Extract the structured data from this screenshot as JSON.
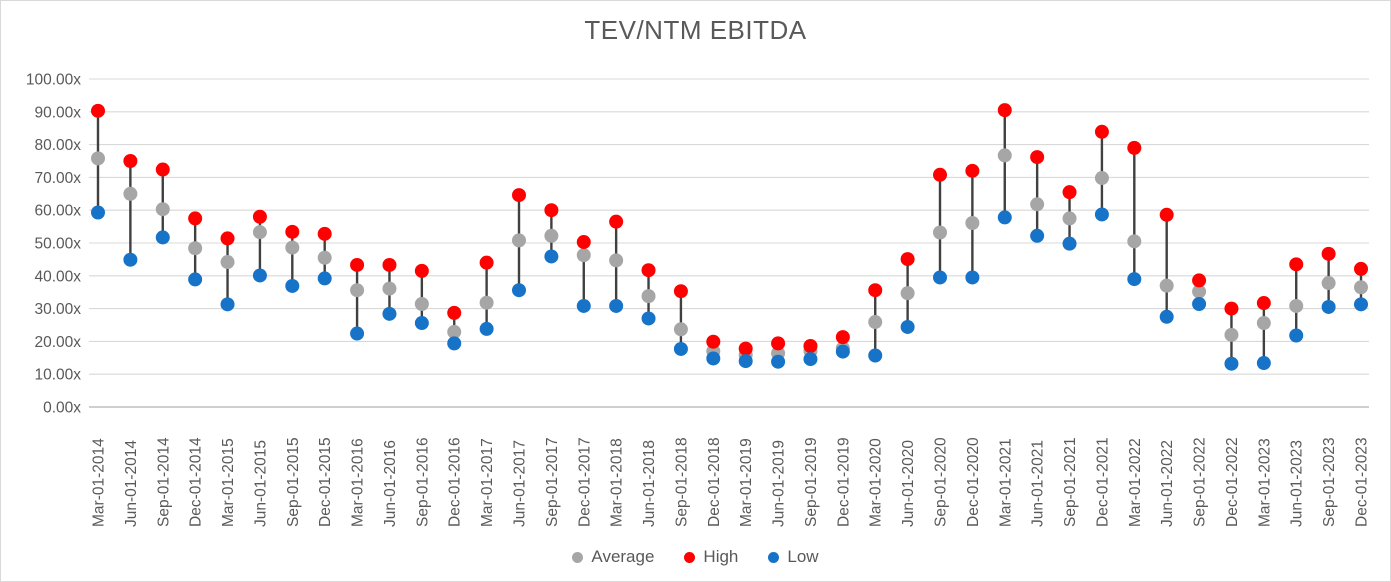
{
  "figure": {
    "background": "#FFFFFF",
    "border_color": "#D9D9D9"
  },
  "legend": {
    "items": [
      {
        "label": "Average",
        "color": "#A6A6A6"
      },
      {
        "label": "High",
        "color": "#FF0000"
      },
      {
        "label": "Low",
        "color": "#1673C8"
      }
    ]
  },
  "chart_data": {
    "type": "scatter",
    "subtype": "high-low-average stock-style chart with hi-lo lines",
    "title": "TEV/NTM EBITDA",
    "xlabel": "",
    "ylabel": "",
    "ylim": [
      0,
      100
    ],
    "y_ticks": [
      0,
      10,
      20,
      30,
      40,
      50,
      60,
      70,
      80,
      90,
      100
    ],
    "y_tick_labels": [
      "0.00x",
      "10.00x",
      "20.00x",
      "30.00x",
      "40.00x",
      "50.00x",
      "60.00x",
      "70.00x",
      "80.00x",
      "90.00x",
      "100.00x"
    ],
    "gridlines": "horizontal",
    "gridline_color": "#D9D9D9",
    "axis_line_color": "#BFBFBF",
    "tick_label_color": "#595959",
    "hilo_lines": true,
    "hilo_line_color": "#404040",
    "legend_position": "bottom-center",
    "categories": [
      "Mar-01-2014",
      "Jun-01-2014",
      "Sep-01-2014",
      "Dec-01-2014",
      "Mar-01-2015",
      "Jun-01-2015",
      "Sep-01-2015",
      "Dec-01-2015",
      "Mar-01-2016",
      "Jun-01-2016",
      "Sep-01-2016",
      "Dec-01-2016",
      "Mar-01-2017",
      "Jun-01-2017",
      "Sep-01-2017",
      "Dec-01-2017",
      "Mar-01-2018",
      "Jun-01-2018",
      "Sep-01-2018",
      "Dec-01-2018",
      "Mar-01-2019",
      "Jun-01-2019",
      "Sep-01-2019",
      "Dec-01-2019",
      "Mar-01-2020",
      "Jun-01-2020",
      "Sep-01-2020",
      "Dec-01-2020",
      "Mar-01-2021",
      "Jun-01-2021",
      "Sep-01-2021",
      "Dec-01-2021",
      "Mar-01-2022",
      "Jun-01-2022",
      "Sep-01-2022",
      "Dec-01-2022",
      "Mar-01-2023",
      "Jun-01-2023",
      "Sep-01-2023",
      "Dec-01-2023"
    ],
    "series": [
      {
        "name": "Average",
        "color": "#A6A6A6",
        "values": [
          75.8,
          65.0,
          60.3,
          48.4,
          44.2,
          53.3,
          48.6,
          45.5,
          35.6,
          36.1,
          31.4,
          22.9,
          31.8,
          50.8,
          52.2,
          46.3,
          44.7,
          33.8,
          23.7,
          17.0,
          15.9,
          16.4,
          17.1,
          17.9,
          25.9,
          34.7,
          53.2,
          56.1,
          76.7,
          61.8,
          57.5,
          69.8,
          50.5,
          37.0,
          35.2,
          22.0,
          25.6,
          30.8,
          37.8,
          36.5
        ]
      },
      {
        "name": "High",
        "color": "#FF0000",
        "values": [
          90.3,
          75.0,
          72.4,
          57.5,
          51.4,
          58.0,
          53.4,
          52.8,
          43.3,
          43.3,
          41.5,
          28.7,
          44.0,
          64.6,
          60.0,
          50.3,
          56.5,
          41.7,
          35.3,
          19.9,
          17.8,
          19.4,
          18.6,
          21.3,
          35.6,
          45.1,
          70.8,
          72.0,
          90.5,
          76.2,
          65.5,
          83.9,
          79.0,
          58.6,
          38.6,
          30.0,
          31.7,
          43.5,
          46.7,
          42.1
        ]
      },
      {
        "name": "Low",
        "color": "#1673C8",
        "values": [
          59.3,
          44.9,
          51.7,
          38.9,
          31.3,
          40.1,
          36.9,
          39.2,
          22.4,
          28.4,
          25.6,
          19.4,
          23.8,
          35.6,
          45.9,
          30.8,
          30.8,
          27.0,
          17.7,
          14.8,
          14.0,
          13.8,
          14.6,
          16.9,
          15.7,
          24.4,
          39.5,
          39.5,
          57.8,
          52.2,
          49.8,
          58.7,
          39.0,
          27.5,
          31.4,
          13.2,
          13.4,
          21.8,
          30.5,
          31.3
        ]
      }
    ]
  }
}
